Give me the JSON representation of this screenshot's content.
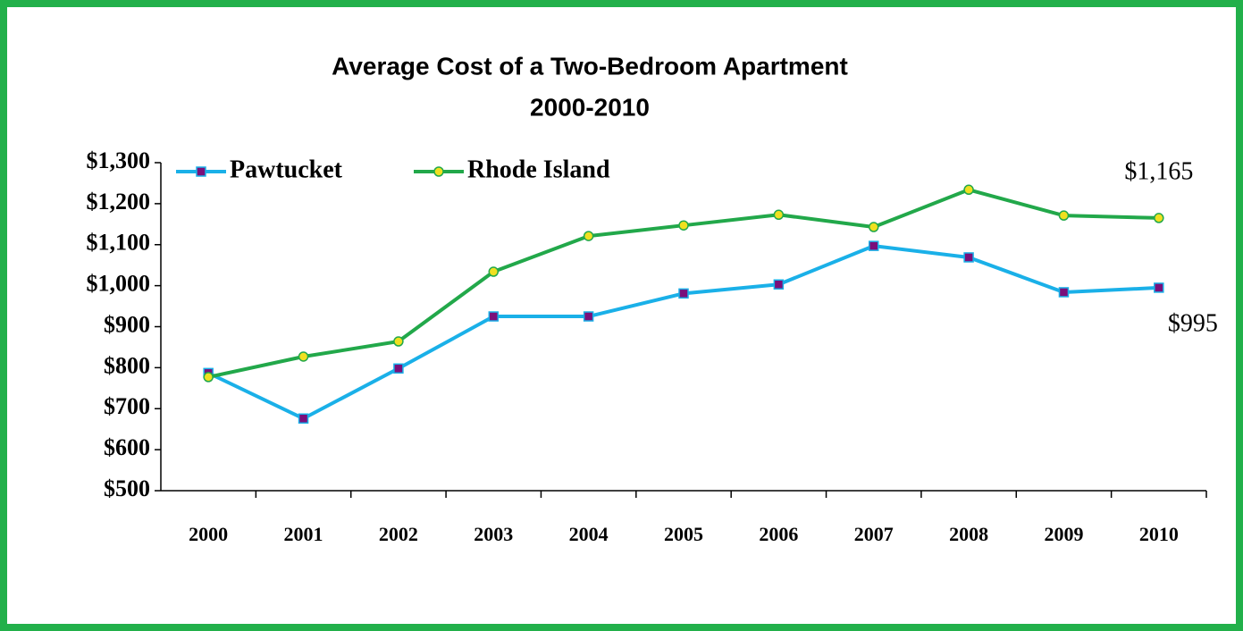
{
  "chart_data": {
    "type": "line",
    "title": "Average Cost of a Two-Bedroom Apartment",
    "subtitle": "2000-2010",
    "categories": [
      "2000",
      "2001",
      "2002",
      "2003",
      "2004",
      "2005",
      "2006",
      "2007",
      "2008",
      "2009",
      "2010"
    ],
    "series": [
      {
        "name": "Pawtucket",
        "color": "#1ab0e8",
        "marker_color": "#7a0f7a",
        "marker": "square",
        "values": [
          787,
          676,
          798,
          925,
          925,
          981,
          1003,
          1097,
          1069,
          984,
          995
        ],
        "value_labels": [
          null,
          null,
          null,
          null,
          null,
          null,
          null,
          null,
          null,
          null,
          "$995"
        ]
      },
      {
        "name": "Rhode Island",
        "color": "#22a84a",
        "marker_color": "#f0e020",
        "marker": "circle",
        "values": [
          777,
          827,
          864,
          1034,
          1121,
          1147,
          1173,
          1143,
          1234,
          1171,
          1165
        ],
        "value_labels": [
          null,
          null,
          null,
          null,
          null,
          null,
          null,
          null,
          null,
          null,
          "$1,165"
        ]
      }
    ],
    "ylim": [
      500,
      1300
    ],
    "yticks": [
      {
        "value": 500,
        "label": "$500"
      },
      {
        "value": 600,
        "label": "$600"
      },
      {
        "value": 700,
        "label": "$700"
      },
      {
        "value": 800,
        "label": "$800"
      },
      {
        "value": 900,
        "label": "$900"
      },
      {
        "value": 1000,
        "label": "$1,000"
      },
      {
        "value": 1100,
        "label": "$1,100"
      },
      {
        "value": 1200,
        "label": "$1,200"
      },
      {
        "value": 1300,
        "label": "$1,300"
      }
    ],
    "grid": false,
    "legend": "top-left"
  }
}
